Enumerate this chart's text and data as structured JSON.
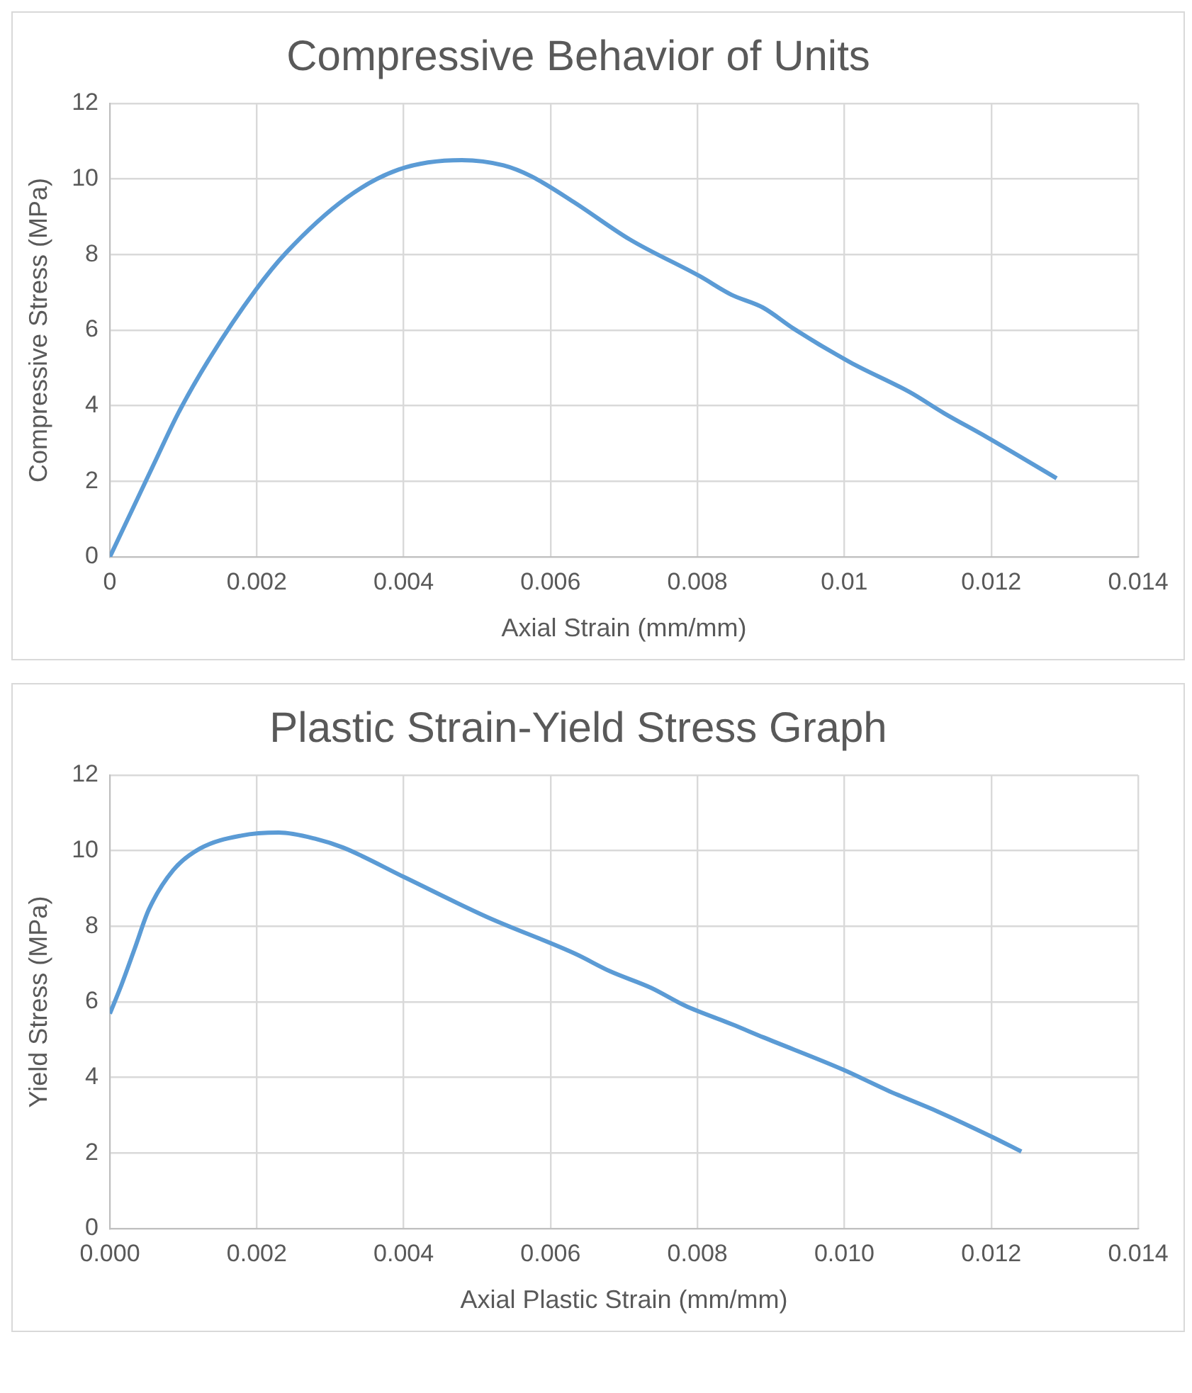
{
  "chart_data": [
    {
      "type": "line",
      "title": "Compressive Behavior of Units",
      "xlabel": "Axial Strain (mm/mm)",
      "ylabel": "Compressive Stress (MPa)",
      "grid": true,
      "legend": false,
      "xlim": [
        0,
        0.014
      ],
      "xticks": [
        0,
        0.002,
        0.004,
        0.006,
        0.008,
        0.01,
        0.012,
        0.014
      ],
      "ylim": [
        0,
        12
      ],
      "yticks": [
        0,
        2,
        4,
        6,
        8,
        10,
        12
      ],
      "series": [
        {
          "color": "#5b9bd5",
          "x": [
            0,
            0.0006,
            0.00093,
            0.00136,
            0.00198,
            0.0024,
            0.00322,
            0.00393,
            0.00479,
            0.00536,
            0.00574,
            0.00631,
            0.00708,
            0.00803,
            0.00846,
            0.00889,
            0.00931,
            0.01008,
            0.01089,
            0.01136,
            0.01193,
            0.01289
          ],
          "values": [
            0,
            2.46,
            3.8,
            5.26,
            7.05,
            8.05,
            9.5,
            10.25,
            10.5,
            10.36,
            10.07,
            9.4,
            8.4,
            7.43,
            6.94,
            6.6,
            6.04,
            5.15,
            4.36,
            3.8,
            3.18,
            2.08
          ]
        }
      ]
    },
    {
      "type": "line",
      "title": "Plastic Strain-Yield Stress Graph",
      "xlabel": "Axial Plastic Strain (mm/mm)",
      "ylabel": "Yield Stress (MPa)",
      "grid": true,
      "legend": false,
      "xlim": [
        0,
        0.014
      ],
      "xticks": [
        {
          "value": 0,
          "label": "0.000"
        },
        {
          "value": 0.002,
          "label": "0.002"
        },
        {
          "value": 0.004,
          "label": "0.004"
        },
        {
          "value": 0.006,
          "label": "0.006"
        },
        {
          "value": 0.008,
          "label": "0.008"
        },
        {
          "value": 0.01,
          "label": "0.010"
        },
        {
          "value": 0.012,
          "label": "0.012"
        },
        {
          "value": 0.014,
          "label": "0.014"
        }
      ],
      "ylim": [
        0,
        12
      ],
      "yticks": [
        0,
        2,
        4,
        6,
        8,
        10,
        12
      ],
      "series": [
        {
          "color": "#5b9bd5",
          "x": [
            0,
            0.00016,
            0.00034,
            0.00053,
            0.00086,
            0.00123,
            0.00179,
            0.0023,
            0.00281,
            0.00318,
            0.00402,
            0.00513,
            0.00634,
            0.00681,
            0.00737,
            0.00783,
            0.00848,
            0.0089,
            0.00998,
            0.01062,
            0.01127,
            0.01202,
            0.01241
          ],
          "values": [
            5.69,
            6.46,
            7.42,
            8.44,
            9.48,
            10.06,
            10.4,
            10.48,
            10.31,
            10.08,
            9.29,
            8.25,
            7.27,
            6.81,
            6.37,
            5.9,
            5.4,
            5.06,
            4.21,
            3.63,
            3.1,
            2.42,
            2.04
          ]
        }
      ]
    }
  ]
}
